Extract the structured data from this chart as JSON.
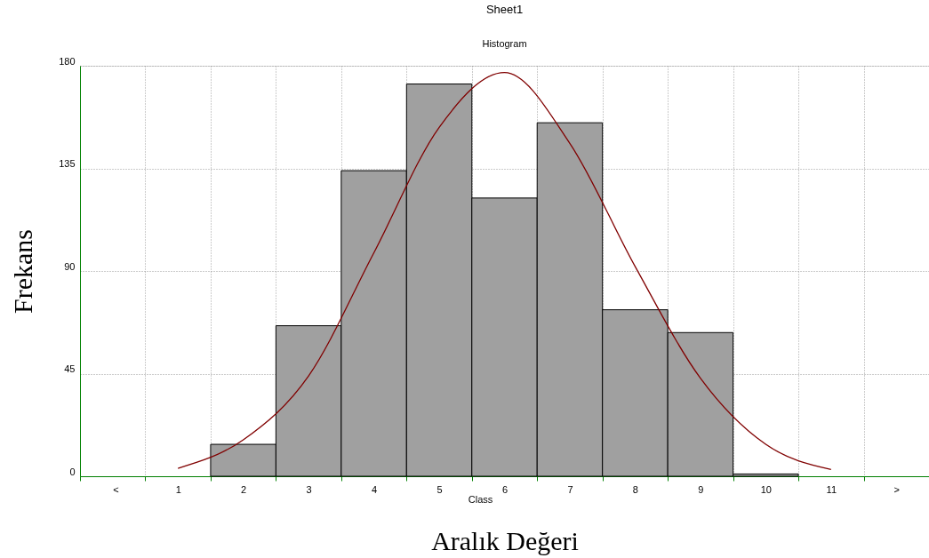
{
  "chart_data": {
    "type": "bar",
    "title": "Sheet1",
    "subtitle": "Histogram",
    "xlabel": "Aralık Değeri",
    "ylabel": "Frekans",
    "annotations": [
      "Class"
    ],
    "categories": [
      "<",
      "1",
      "2",
      "3",
      "4",
      "5",
      "6",
      "7",
      "8",
      "9",
      "10",
      "11",
      ">"
    ],
    "series": [
      {
        "color": "#a0a0a0",
        "values": [
          0,
          0,
          14,
          66,
          134,
          172,
          122,
          155,
          73,
          63,
          1,
          0,
          0
        ]
      },
      {
        "type": "line",
        "color": "#800000",
        "values": [
          null,
          3.5,
          16,
          44,
          98,
          153,
          177,
          146,
          92,
          43,
          14,
          3,
          null
        ]
      }
    ],
    "ylim": [
      0,
      180
    ],
    "yticks": [
      0,
      45,
      90,
      135,
      180
    ],
    "grid": true
  }
}
